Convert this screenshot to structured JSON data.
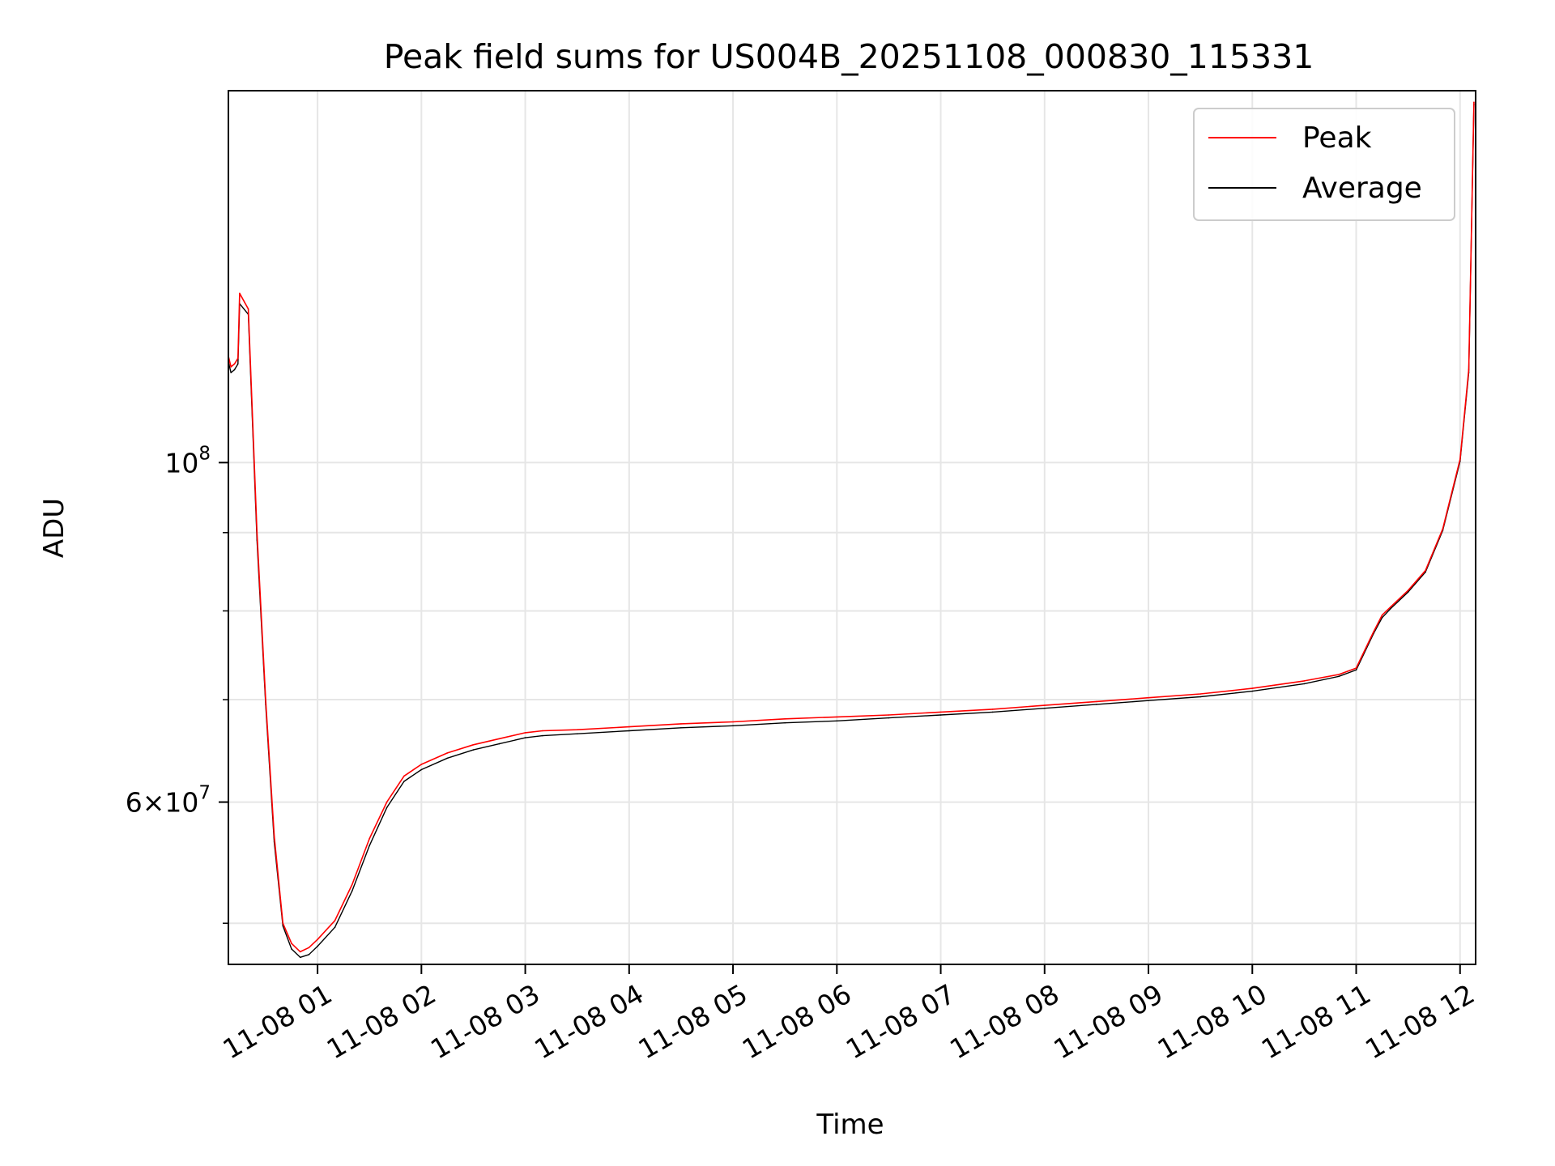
{
  "chart_data": {
    "type": "line",
    "title": "Peak field sums for US004B_20251108_000830_115331",
    "xlabel": "Time",
    "ylabel": "ADU",
    "yscale": "log",
    "xlim": [
      "2025-11-08 00:08:30",
      "2025-11-08 12:09:00"
    ],
    "ylim": [
      47000000,
      175000000
    ],
    "grid": true,
    "legend": "top-right",
    "x_ticks": [
      "11-08 01",
      "11-08 02",
      "11-08 03",
      "11-08 04",
      "11-08 05",
      "11-08 06",
      "11-08 07",
      "11-08 08",
      "11-08 09",
      "11-08 10",
      "11-08 11",
      "11-08 12"
    ],
    "y_ticks": [
      {
        "value": 100000000,
        "base": "10",
        "exp": "8",
        "prefix": ""
      },
      {
        "value": 60000000,
        "base": "10",
        "exp": "7",
        "prefix": "6×"
      }
    ],
    "x": [
      "00:08",
      "00:10",
      "00:12",
      "00:14",
      "00:15",
      "00:20",
      "00:25",
      "00:30",
      "00:35",
      "00:40",
      "00:45",
      "00:50",
      "00:55",
      "01:00",
      "01:10",
      "01:20",
      "01:30",
      "01:40",
      "01:50",
      "02:00",
      "02:15",
      "02:30",
      "02:45",
      "03:00",
      "03:10",
      "03:30",
      "04:00",
      "04:30",
      "05:00",
      "05:30",
      "06:00",
      "06:30",
      "07:00",
      "07:30",
      "08:00",
      "08:30",
      "09:00",
      "09:30",
      "10:00",
      "10:30",
      "10:50",
      "11:00",
      "11:10",
      "11:15",
      "11:20",
      "11:30",
      "11:40",
      "11:50",
      "12:00",
      "12:05",
      "12:08"
    ],
    "series": [
      {
        "name": "Peak",
        "color": "#ff0000",
        "values": [
          118000000,
          115500000,
          116000000,
          117000000,
          129000000,
          126000000,
          90000000,
          70000000,
          57000000,
          50000000,
          48500000,
          47900000,
          48200000,
          48800000,
          50200000,
          53000000,
          56800000,
          60000000,
          62400000,
          63500000,
          64600000,
          65400000,
          66000000,
          66600000,
          66800000,
          66900000,
          67200000,
          67500000,
          67700000,
          68000000,
          68200000,
          68400000,
          68700000,
          69000000,
          69400000,
          69800000,
          70200000,
          70600000,
          71200000,
          72000000,
          72700000,
          73400000,
          77500000,
          79500000,
          80500000,
          82500000,
          85000000,
          90500000,
          100500000,
          115000000,
          172000000
        ]
      },
      {
        "name": "Average",
        "color": "#000000",
        "values": [
          117000000,
          114500000,
          115000000,
          116000000,
          127000000,
          125000000,
          89000000,
          69500000,
          56500000,
          49800000,
          48100000,
          47500000,
          47700000,
          48300000,
          49700000,
          52500000,
          56200000,
          59500000,
          61900000,
          63000000,
          64100000,
          64900000,
          65500000,
          66100000,
          66300000,
          66500000,
          66800000,
          67100000,
          67300000,
          67600000,
          67800000,
          68100000,
          68400000,
          68700000,
          69100000,
          69500000,
          69900000,
          70300000,
          70900000,
          71700000,
          72500000,
          73200000,
          77300000,
          79200000,
          80300000,
          82300000,
          84800000,
          90300000,
          100200000,
          114500000,
          171500000
        ]
      }
    ]
  }
}
